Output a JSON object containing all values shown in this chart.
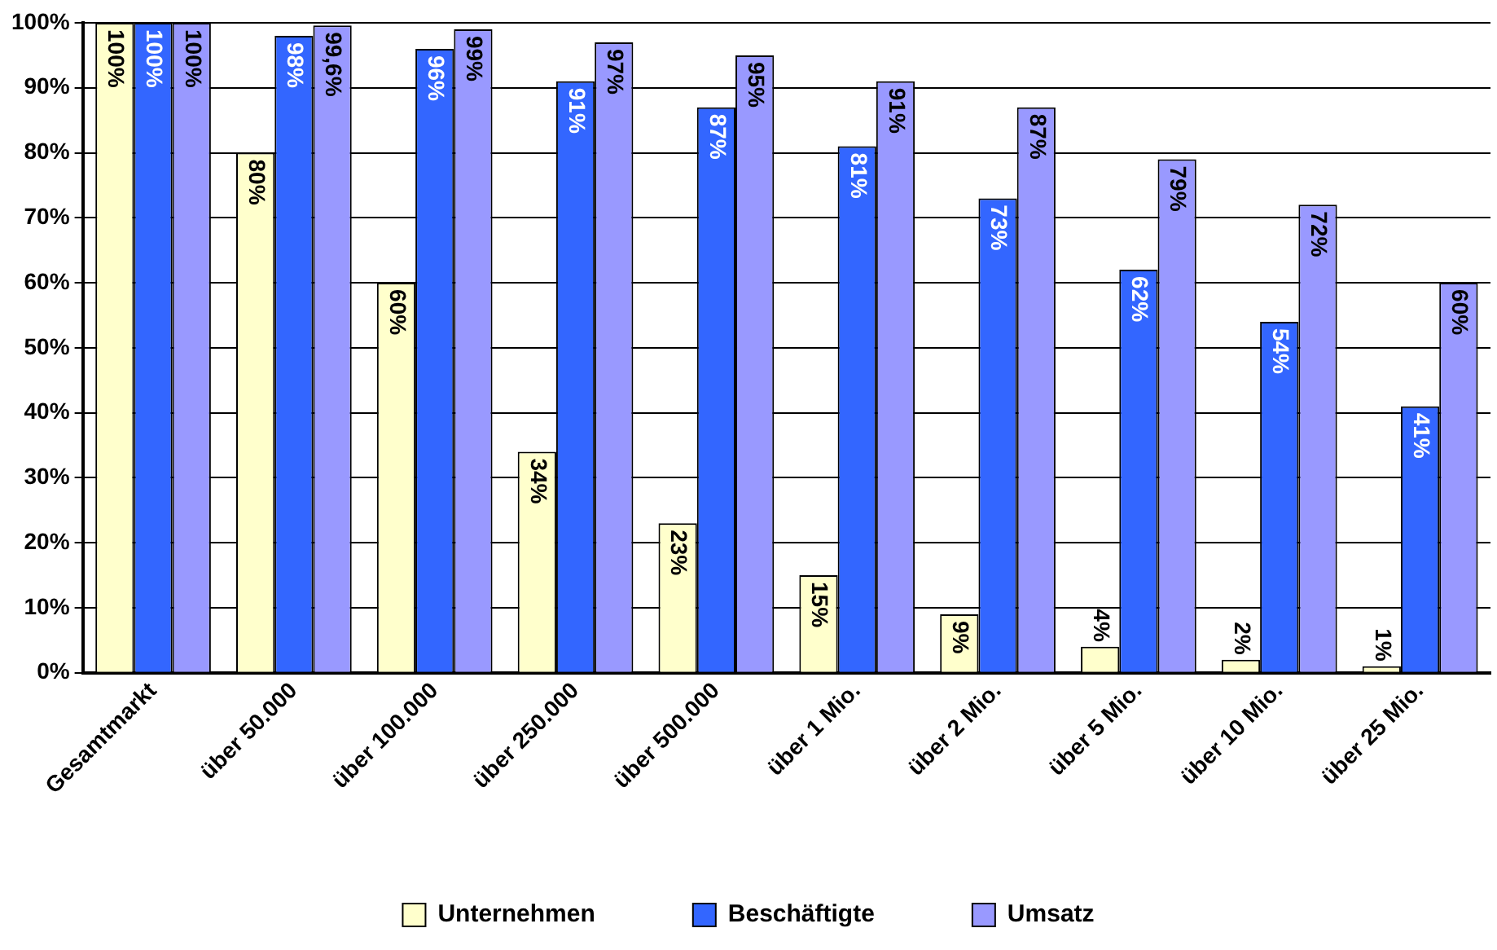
{
  "chart_data": {
    "type": "bar",
    "categories": [
      "Gesamtmarkt",
      "über 50.000",
      "über 100.000",
      "über 250.000",
      "über 500.000",
      "über 1 Mio.",
      "über 2 Mio.",
      "über 5 Mio.",
      "über 10 Mio.",
      "über 25 Mio."
    ],
    "series": [
      {
        "name": "Unternehmen",
        "color": "#ffffcc",
        "values": [
          100,
          80,
          60,
          34,
          23,
          15,
          9,
          4,
          2,
          1
        ],
        "value_labels": [
          "100%",
          "80%",
          "60%",
          "34%",
          "23%",
          "15%",
          "9%",
          "4%",
          "2%",
          "1%"
        ]
      },
      {
        "name": "Beschäftigte",
        "color": "#3366ff",
        "values": [
          100,
          98,
          96,
          91,
          87,
          81,
          73,
          62,
          54,
          41
        ],
        "value_labels": [
          "100%",
          "98%",
          "96%",
          "91%",
          "87%",
          "81%",
          "73%",
          "62%",
          "54%",
          "41%"
        ]
      },
      {
        "name": "Umsatz",
        "color": "#9999ff",
        "values": [
          100,
          99.6,
          99,
          97,
          95,
          91,
          87,
          79,
          72,
          60
        ],
        "value_labels": [
          "100%",
          "99,6%",
          "99%",
          "97%",
          "95%",
          "91%",
          "87%",
          "79%",
          "72%",
          "60%"
        ]
      }
    ],
    "ylim": [
      0,
      100
    ],
    "yticks": [
      {
        "value": 0,
        "label": "0%"
      },
      {
        "value": 10,
        "label": "10%"
      },
      {
        "value": 20,
        "label": "20%"
      },
      {
        "value": 30,
        "label": "30%"
      },
      {
        "value": 40,
        "label": "40%"
      },
      {
        "value": 50,
        "label": "50%"
      },
      {
        "value": 60,
        "label": "60%"
      },
      {
        "value": 70,
        "label": "70%"
      },
      {
        "value": 80,
        "label": "80%"
      },
      {
        "value": 90,
        "label": "90%"
      },
      {
        "value": 100,
        "label": "100%"
      }
    ],
    "grid": "y",
    "legend": "bottom"
  }
}
